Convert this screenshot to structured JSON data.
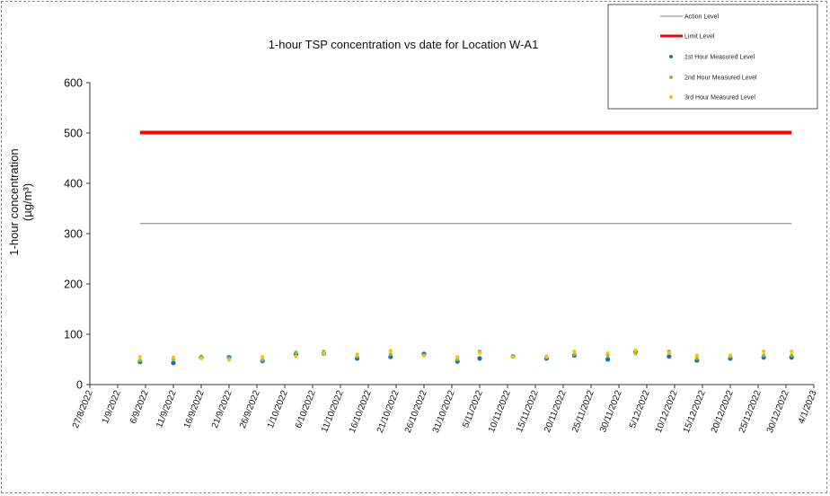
{
  "chart_data": {
    "type": "scatter",
    "title": "1-hour TSP concentration vs date for Location W-A1",
    "ylabel_line1": "1-hour concentration",
    "ylabel_line2": "(µg/m³)",
    "xlabel": "",
    "ylim": [
      0,
      600
    ],
    "yticks": [
      0,
      100,
      200,
      300,
      400,
      500,
      600
    ],
    "xlim": [
      "2022-08-27",
      "2023-01-04"
    ],
    "xtick_dates": [
      "2022-08-27",
      "2022-09-01",
      "2022-09-06",
      "2022-09-11",
      "2022-09-16",
      "2022-09-21",
      "2022-09-26",
      "2022-10-01",
      "2022-10-06",
      "2022-10-11",
      "2022-10-16",
      "2022-10-21",
      "2022-10-26",
      "2022-10-31",
      "2022-11-05",
      "2022-11-10",
      "2022-11-15",
      "2022-11-20",
      "2022-11-25",
      "2022-11-30",
      "2022-12-05",
      "2022-12-10",
      "2022-12-15",
      "2022-12-20",
      "2022-12-25",
      "2022-12-30",
      "2023-01-04"
    ],
    "xtick_labels": [
      "27/8/2022",
      "1/9/2022",
      "6/9/2022",
      "11/9/2022",
      "16/9/2022",
      "21/9/2022",
      "26/9/2022",
      "1/10/2022",
      "6/10/2022",
      "11/10/2022",
      "16/10/2022",
      "21/10/2022",
      "26/10/2022",
      "31/10/2022",
      "5/11/2022",
      "10/11/2022",
      "15/11/2022",
      "20/11/2022",
      "25/11/2022",
      "30/11/2022",
      "5/12/2022",
      "10/12/2022",
      "15/12/2022",
      "20/12/2022",
      "25/12/2022",
      "30/12/2022",
      "4/1/2023"
    ],
    "grid": false,
    "legend_position": "top-right",
    "dates": [
      "2022-09-05",
      "2022-09-11",
      "2022-09-16",
      "2022-09-21",
      "2022-09-27",
      "2022-10-03",
      "2022-10-08",
      "2022-10-14",
      "2022-10-20",
      "2022-10-26",
      "2022-11-01",
      "2022-11-05",
      "2022-11-11",
      "2022-11-17",
      "2022-11-22",
      "2022-11-28",
      "2022-12-03",
      "2022-12-09",
      "2022-12-14",
      "2022-12-20",
      "2022-12-26",
      "2022-12-31"
    ],
    "series": [
      {
        "name": "Action Level",
        "kind": "line",
        "color": "#7f7f7f",
        "x": [
          "2022-09-05",
          "2022-12-31"
        ],
        "values": [
          320,
          320
        ]
      },
      {
        "name": "Limit Level",
        "kind": "line",
        "color": "#ff0000",
        "x": [
          "2022-09-05",
          "2022-12-31"
        ],
        "values": [
          501,
          501
        ]
      },
      {
        "name": "1st Hour Measured Level",
        "kind": "points",
        "color": "#1f6fbf",
        "values": [
          45,
          43,
          54,
          54,
          47,
          60,
          62,
          52,
          55,
          61,
          46,
          52,
          56,
          52,
          58,
          50,
          65,
          56,
          48,
          52,
          54,
          54
        ]
      },
      {
        "name": "2nd Hour Measured Level",
        "kind": "points",
        "color": "#8cbf3f",
        "values": [
          48,
          50,
          56,
          52,
          49,
          64,
          66,
          56,
          60,
          58,
          50,
          66,
          56,
          54,
          60,
          58,
          62,
          66,
          52,
          56,
          58,
          58
        ]
      },
      {
        "name": "3rd Hour Measured Level",
        "kind": "points",
        "color": "#ffc000",
        "values": [
          55,
          54,
          52,
          49,
          55,
          56,
          62,
          60,
          67,
          57,
          55,
          63,
          55,
          56,
          66,
          62,
          68,
          63,
          58,
          58,
          66,
          66
        ]
      }
    ]
  }
}
